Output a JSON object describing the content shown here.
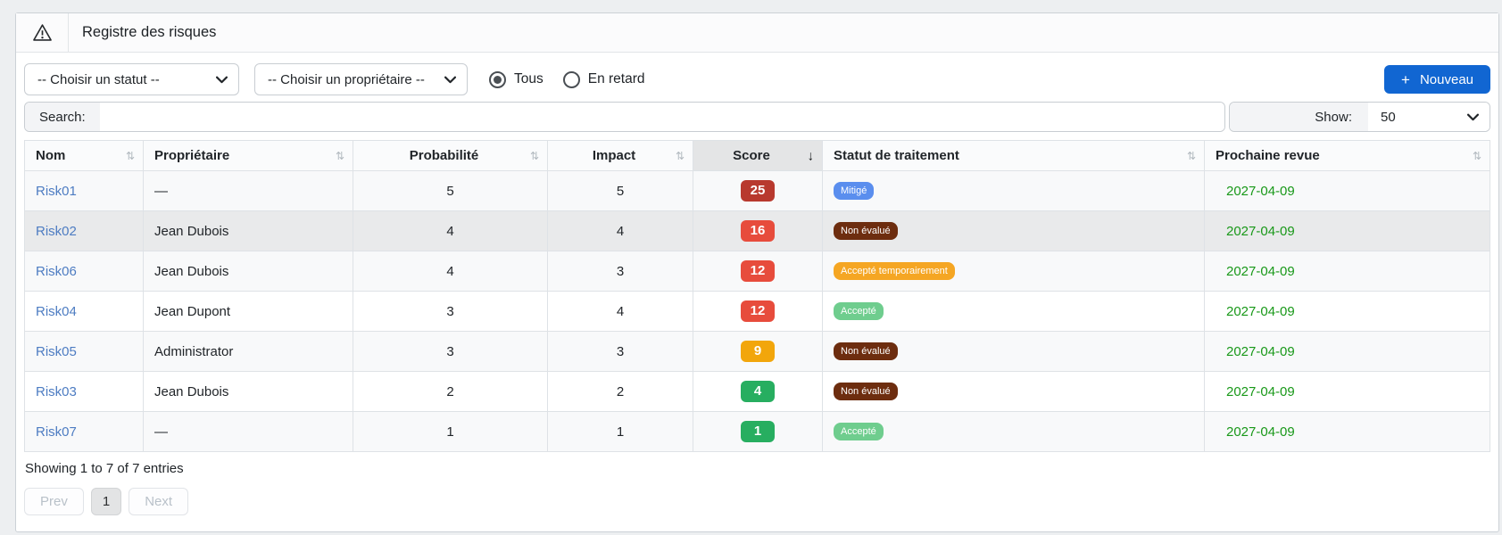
{
  "theme": {
    "primary_button": "#1166d2",
    "link_blue": "#4d7cc2",
    "date_green": "#189818",
    "page_background": "#edeff1",
    "table_border": "#dee2e6",
    "highlighted_row": "#e9eaeb"
  },
  "header": {
    "title": "Registre des risques",
    "icon": "warning-icon"
  },
  "filters": {
    "status_select_value": "-- Choisir un statut --",
    "owner_select_value": "-- Choisir un propriétaire --",
    "radio_all_label": "Tous",
    "radio_all_selected": true,
    "radio_late_label": "En retard",
    "radio_late_selected": false,
    "new_button_label": "Nouveau",
    "new_button_plus": "+"
  },
  "search": {
    "label": "Search:",
    "value": "",
    "placeholder": ""
  },
  "show": {
    "label": "Show:",
    "value": "50"
  },
  "table": {
    "sort_icon": "⇅",
    "sorted_desc_icon": "↓",
    "columns": [
      {
        "label": "Nom",
        "align": "left",
        "sort": "none"
      },
      {
        "label": "Propriétaire",
        "align": "left",
        "sort": "none"
      },
      {
        "label": "Probabilité",
        "align": "center",
        "sort": "none"
      },
      {
        "label": "Impact",
        "align": "center",
        "sort": "none"
      },
      {
        "label": "Score",
        "align": "center",
        "sort": "desc"
      },
      {
        "label": "Statut de traitement",
        "align": "left",
        "sort": "none"
      },
      {
        "label": "Prochaine revue",
        "align": "left",
        "sort": "none"
      }
    ],
    "rows": [
      {
        "name": "Risk01",
        "owner": "—",
        "probability": "5",
        "impact": "5",
        "score": "25",
        "score_color": "#b8392e",
        "statut": "Mitigé",
        "statut_color": "#5a8eee",
        "next_review": "2027-04-09",
        "highlighted": false
      },
      {
        "name": "Risk02",
        "owner": "Jean Dubois",
        "probability": "4",
        "impact": "4",
        "score": "16",
        "score_color": "#e74c3c",
        "statut": "Non évalué",
        "statut_color": "#6d2d0f",
        "next_review": "2027-04-09",
        "highlighted": true
      },
      {
        "name": "Risk06",
        "owner": "Jean Dubois",
        "probability": "4",
        "impact": "3",
        "score": "12",
        "score_color": "#e74c3c",
        "statut": "Accepté temporairement",
        "statut_color": "#f5a623",
        "next_review": "2027-04-09",
        "highlighted": false
      },
      {
        "name": "Risk04",
        "owner": "Jean Dupont",
        "probability": "3",
        "impact": "4",
        "score": "12",
        "score_color": "#e74c3c",
        "statut": "Accepté",
        "statut_color": "#6fcd8e",
        "next_review": "2027-04-09",
        "highlighted": false
      },
      {
        "name": "Risk05",
        "owner": "Administrator",
        "probability": "3",
        "impact": "3",
        "score": "9",
        "score_color": "#f2a60b",
        "statut": "Non évalué",
        "statut_color": "#6d2d0f",
        "next_review": "2027-04-09",
        "highlighted": false
      },
      {
        "name": "Risk03",
        "owner": "Jean Dubois",
        "probability": "2",
        "impact": "2",
        "score": "4",
        "score_color": "#27ae60",
        "statut": "Non évalué",
        "statut_color": "#6d2d0f",
        "next_review": "2027-04-09",
        "highlighted": false
      },
      {
        "name": "Risk07",
        "owner": "—",
        "probability": "1",
        "impact": "1",
        "score": "1",
        "score_color": "#27ae60",
        "statut": "Accepté",
        "statut_color": "#6fcd8e",
        "next_review": "2027-04-09",
        "highlighted": false
      }
    ]
  },
  "footer": {
    "summary": "Showing 1 to 7 of 7 entries",
    "pagination": {
      "prev": "Prev",
      "current": "1",
      "next": "Next"
    }
  }
}
